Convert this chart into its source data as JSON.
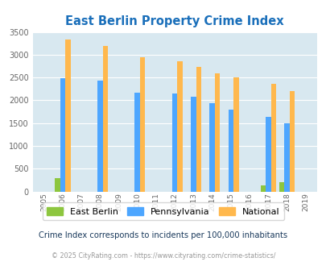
{
  "title": "East Berlin Property Crime Index",
  "title_color": "#1a6fba",
  "years": [
    2005,
    2006,
    2007,
    2008,
    2009,
    2010,
    2011,
    2012,
    2013,
    2014,
    2015,
    2016,
    2017,
    2018,
    2019
  ],
  "east_berlin": [
    0,
    295,
    0,
    0,
    0,
    0,
    0,
    0,
    0,
    0,
    0,
    0,
    140,
    210,
    0
  ],
  "pennsylvania": [
    0,
    2480,
    0,
    2440,
    0,
    2175,
    0,
    2150,
    2070,
    1940,
    1800,
    0,
    1630,
    1490,
    0
  ],
  "national": [
    0,
    3330,
    0,
    3200,
    0,
    2950,
    0,
    2850,
    2730,
    2600,
    2500,
    0,
    2370,
    2210,
    0
  ],
  "eb_color": "#8dc63f",
  "pa_color": "#4da6ff",
  "nat_color": "#ffb84d",
  "bg_color": "#d8e8f0",
  "ylim": [
    0,
    3500
  ],
  "yticks": [
    0,
    500,
    1000,
    1500,
    2000,
    2500,
    3000,
    3500
  ],
  "subtitle": "Crime Index corresponds to incidents per 100,000 inhabitants",
  "subtitle_color": "#1a3a5c",
  "footer": "© 2025 CityRating.com - https://www.cityrating.com/crime-statistics/",
  "footer_color": "#999999",
  "bar_width": 0.28,
  "grid_color": "#ffffff",
  "legend_labels": [
    "East Berlin",
    "Pennsylvania",
    "National"
  ]
}
